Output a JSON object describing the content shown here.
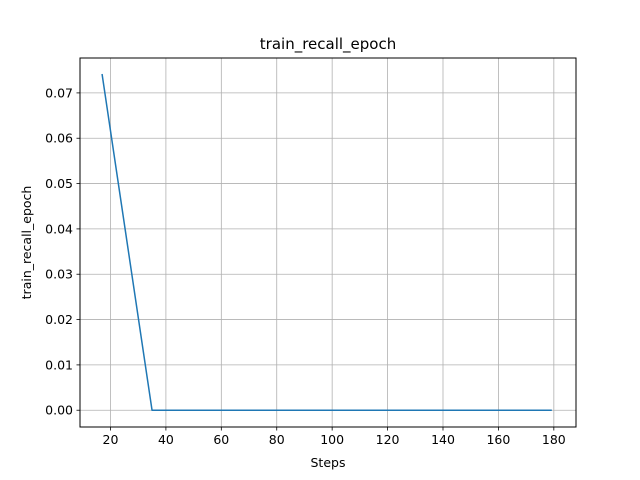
{
  "chart_data": {
    "type": "line",
    "title": "train_recall_epoch",
    "xlabel": "Steps",
    "ylabel": "train_recall_epoch",
    "xlim": [
      9,
      188
    ],
    "ylim": [
      -0.0037,
      0.0777
    ],
    "x_ticks": [
      20,
      40,
      60,
      80,
      100,
      120,
      140,
      160,
      180
    ],
    "x_tick_labels": [
      "20",
      "40",
      "60",
      "80",
      "100",
      "120",
      "140",
      "160",
      "180"
    ],
    "y_ticks": [
      0.0,
      0.01,
      0.02,
      0.03,
      0.04,
      0.05,
      0.06,
      0.07
    ],
    "y_tick_labels": [
      "0.00",
      "0.01",
      "0.02",
      "0.03",
      "0.04",
      "0.05",
      "0.06",
      "0.07"
    ],
    "grid": true,
    "series": [
      {
        "color": "#1f77b4",
        "x": [
          17,
          35,
          53,
          71,
          89,
          107,
          125,
          143,
          161,
          179
        ],
        "y": [
          0.074,
          0.0,
          0.0,
          0.0,
          0.0,
          0.0,
          0.0,
          0.0,
          0.0,
          0.0
        ]
      }
    ]
  }
}
